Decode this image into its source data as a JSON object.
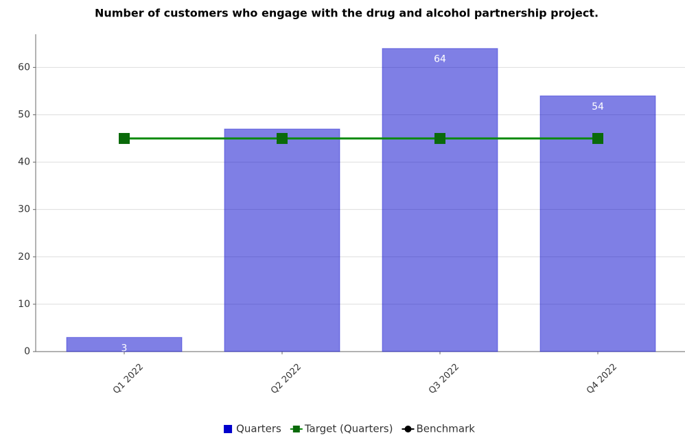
{
  "chart_data": {
    "type": "bar",
    "title": "Number of customers who engage with the drug and alcohol partnership project.",
    "categories": [
      "Q1 2022",
      "Q2 2022",
      "Q3 2022",
      "Q4 2022"
    ],
    "series": [
      {
        "name": "Quarters",
        "type": "bar",
        "color": "#0000cc",
        "values": [
          3,
          47,
          64,
          54
        ]
      },
      {
        "name": "Target (Quarters)",
        "type": "line",
        "color": "#0b8a0b",
        "values": [
          45,
          45,
          45,
          45
        ]
      },
      {
        "name": "Benchmark",
        "type": "line",
        "color": "#000000",
        "values": [
          null,
          null,
          null,
          null
        ]
      }
    ],
    "ylim": [
      0,
      67
    ],
    "yticks": [
      0,
      10,
      20,
      30,
      40,
      50,
      60
    ],
    "grid": true,
    "legend": "bottom"
  }
}
